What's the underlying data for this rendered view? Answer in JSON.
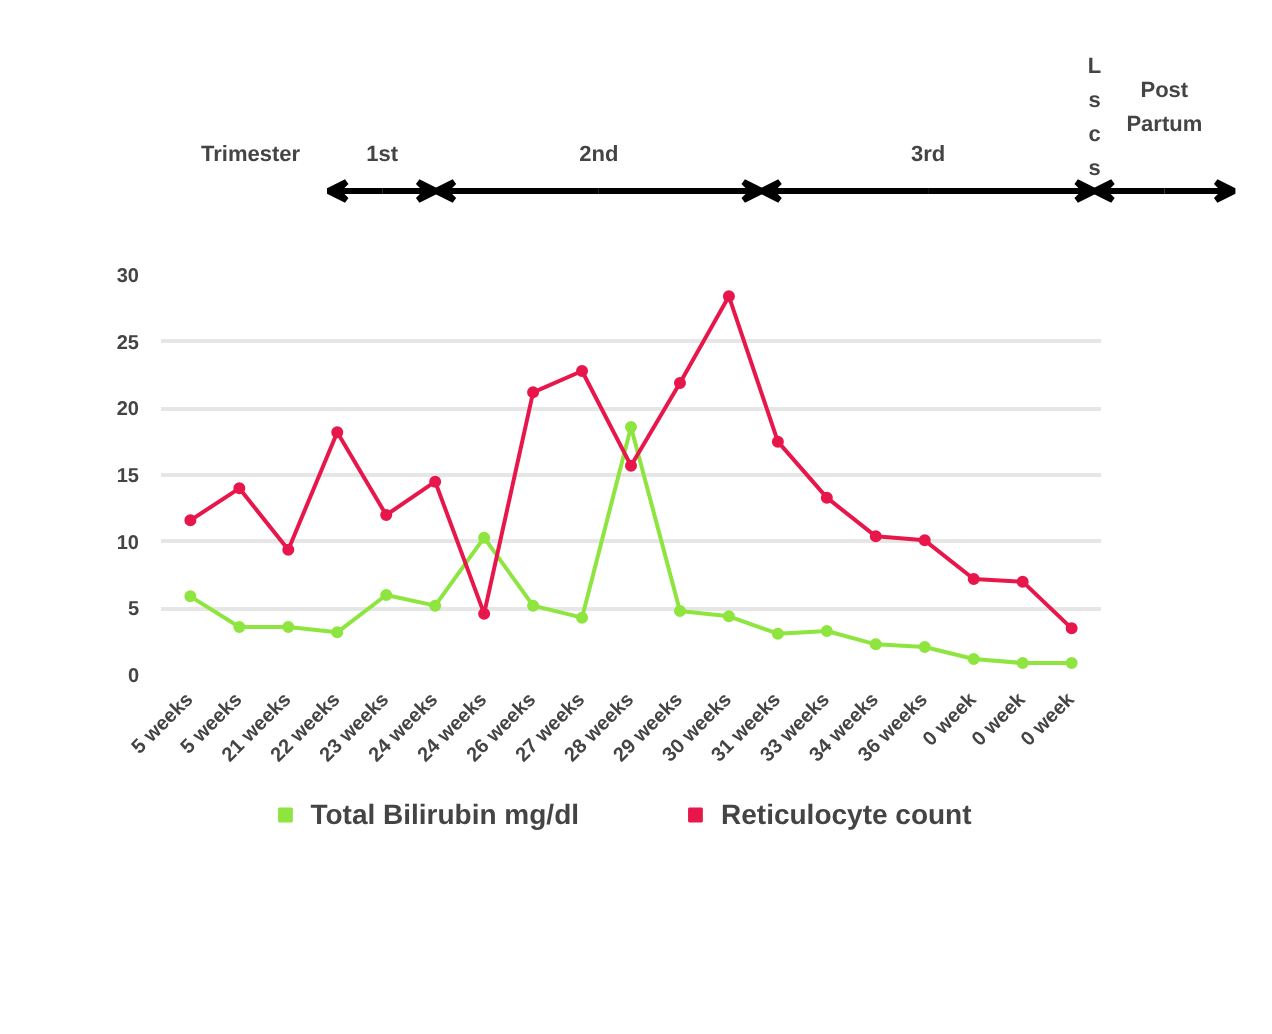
{
  "chart_data": {
    "type": "line",
    "categories": [
      "5 weeks",
      "5 weeks",
      "21 weeks",
      "22 weeks",
      "23 weeks",
      "24 weeks",
      "24 weeks",
      "26 weeks",
      "27 weeks",
      "28 weeks",
      "29 weeks",
      "30 weeks",
      "31 weeks",
      "33 weeks",
      "34 weeks",
      "36 weeks",
      "0 week",
      "0 week",
      "0 week"
    ],
    "series": [
      {
        "name": "Total Bilirubin mg/dl",
        "color": "#8ee53f",
        "values": [
          5.9,
          3.6,
          3.6,
          3.2,
          6.0,
          5.2,
          10.3,
          5.2,
          4.3,
          18.6,
          4.8,
          4.4,
          3.1,
          3.3,
          2.3,
          2.1,
          1.2,
          0.9,
          0.9
        ]
      },
      {
        "name": "Reticulocyte count",
        "color": "#e8174b",
        "values": [
          11.6,
          14.0,
          9.4,
          18.2,
          12.0,
          14.5,
          4.6,
          21.2,
          22.8,
          15.7,
          21.9,
          28.4,
          17.5,
          13.3,
          10.4,
          10.1,
          7.2,
          7.0,
          3.5
        ]
      }
    ],
    "ylim": [
      0,
      30
    ],
    "yticks": [
      0,
      5,
      10,
      15,
      20,
      25,
      30
    ],
    "annotations": [
      "Trimester",
      "1st",
      "2nd",
      "3rd",
      "Lscs",
      "Post Partum"
    ],
    "grid": "y",
    "legend": "bottom",
    "marker": "circle",
    "line_style": "solid"
  }
}
